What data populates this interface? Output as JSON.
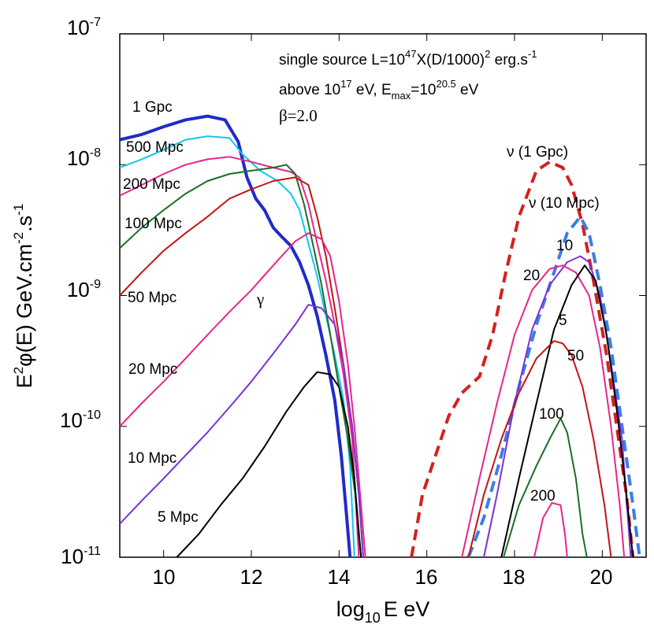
{
  "chart_data": {
    "type": "line",
    "xlabel": {
      "pre": "log",
      "sub": "10",
      "post": "E eV"
    },
    "ylabel": {
      "p1": "E",
      "sup1": "2",
      "p2": "φ(E) GeV.cm",
      "sup2": "-2",
      "p3": ".s",
      "sup3": "-1"
    },
    "xlim": [
      9,
      21
    ],
    "ylim": [
      1e-11,
      1e-07
    ],
    "y_scale": "log",
    "x_ticks": [
      "10",
      "12",
      "14",
      "16",
      "18",
      "20"
    ],
    "y_ticks": [
      {
        "base": "10",
        "exp": "-7"
      },
      {
        "base": "10",
        "exp": "-8"
      },
      {
        "base": "10",
        "exp": "-9"
      },
      {
        "base": "10",
        "exp": "-10"
      },
      {
        "base": "10",
        "exp": "-11"
      }
    ],
    "annotations": {
      "line1": {
        "a": "single source L=10",
        "b": "47",
        "c": "X(D/1000)",
        "d": "2",
        "e": " erg.s",
        "f": "-1"
      },
      "line2": {
        "a": "above 10",
        "b": "17",
        "c": " eV, E",
        "d": "max",
        "e": "=10",
        "f": "20.5",
        "g": " eV"
      },
      "beta": "β=2.0",
      "gamma": "γ"
    },
    "series": [
      {
        "label": "1 Gpc",
        "color": "#1f2bc9",
        "dash": false,
        "width": 4,
        "points": [
          [
            9,
            1.55e-08
          ],
          [
            9.5,
            1.7e-08
          ],
          [
            10,
            1.95e-08
          ],
          [
            10.5,
            2.2e-08
          ],
          [
            11,
            2.35e-08
          ],
          [
            11.4,
            2.2e-08
          ],
          [
            11.7,
            1.5e-08
          ],
          [
            11.9,
            8e-09
          ],
          [
            12.1,
            5.5e-09
          ],
          [
            12.3,
            4.5e-09
          ],
          [
            12.5,
            3.3e-09
          ],
          [
            12.7,
            2.8e-09
          ],
          [
            12.9,
            2.4e-09
          ],
          [
            13.1,
            1.8e-09
          ],
          [
            13.3,
            1.2e-09
          ],
          [
            13.5,
            7e-10
          ],
          [
            13.7,
            3.5e-10
          ],
          [
            13.9,
            1.6e-10
          ],
          [
            14.05,
            6e-11
          ],
          [
            14.15,
            2.5e-11
          ],
          [
            14.25,
            1e-11
          ]
        ]
      },
      {
        "label": "500 Mpc",
        "color": "#12c7ef",
        "dash": false,
        "width": 2,
        "points": [
          [
            9,
            9.5e-09
          ],
          [
            9.5,
            1.1e-08
          ],
          [
            10,
            1.3e-08
          ],
          [
            10.5,
            1.55e-08
          ],
          [
            11,
            1.65e-08
          ],
          [
            11.5,
            1.6e-08
          ],
          [
            11.8,
            1.2e-08
          ],
          [
            12.2,
            9e-09
          ],
          [
            12.6,
            7.5e-09
          ],
          [
            12.9,
            6e-09
          ],
          [
            13.1,
            4.5e-09
          ],
          [
            13.3,
            2.5e-09
          ],
          [
            13.5,
            1.4e-09
          ],
          [
            13.7,
            7e-10
          ],
          [
            13.9,
            3.5e-10
          ],
          [
            14.1,
            1.6e-10
          ],
          [
            14.25,
            5e-11
          ],
          [
            14.35,
            1e-11
          ]
        ]
      },
      {
        "label": "200 Mpc",
        "color": "#e8258a",
        "dash": false,
        "width": 2,
        "points": [
          [
            9,
            5.8e-09
          ],
          [
            9.5,
            7e-09
          ],
          [
            10,
            8.5e-09
          ],
          [
            10.5,
            1e-08
          ],
          [
            11,
            1.1e-08
          ],
          [
            11.5,
            1.15e-08
          ],
          [
            12,
            1.05e-08
          ],
          [
            12.5,
            9.5e-09
          ],
          [
            12.9,
            8.8e-09
          ],
          [
            13.1,
            8e-09
          ],
          [
            13.3,
            5e-09
          ],
          [
            13.5,
            2.5e-09
          ],
          [
            13.7,
            1.3e-09
          ],
          [
            13.9,
            6e-10
          ],
          [
            14.1,
            2.5e-10
          ],
          [
            14.3,
            8e-11
          ],
          [
            14.45,
            1e-11
          ]
        ]
      },
      {
        "label": "100 Mpc",
        "color": "#1b6e24",
        "dash": false,
        "width": 2,
        "points": [
          [
            9,
            2.3e-09
          ],
          [
            9.5,
            3.3e-09
          ],
          [
            10,
            4.5e-09
          ],
          [
            10.5,
            6e-09
          ],
          [
            11,
            7.5e-09
          ],
          [
            11.5,
            8.5e-09
          ],
          [
            12,
            9e-09
          ],
          [
            12.5,
            9.5e-09
          ],
          [
            12.8,
            1e-08
          ],
          [
            13,
            8.5e-09
          ],
          [
            13.2,
            5e-09
          ],
          [
            13.4,
            2.5e-09
          ],
          [
            13.6,
            1.2e-09
          ],
          [
            13.8,
            5e-10
          ],
          [
            14,
            2e-10
          ],
          [
            14.2,
            8e-11
          ],
          [
            14.4,
            2.5e-11
          ],
          [
            14.5,
            1e-11
          ]
        ]
      },
      {
        "label": "50 Mpc",
        "color": "#c41414",
        "dash": false,
        "width": 2,
        "points": [
          [
            9,
            1e-09
          ],
          [
            9.5,
            1.5e-09
          ],
          [
            10,
            2.2e-09
          ],
          [
            10.5,
            3e-09
          ],
          [
            11,
            4e-09
          ],
          [
            11.5,
            5.5e-09
          ],
          [
            12,
            6.5e-09
          ],
          [
            12.5,
            7.5e-09
          ],
          [
            13,
            8e-09
          ],
          [
            13.3,
            7e-09
          ],
          [
            13.5,
            4e-09
          ],
          [
            13.7,
            2e-09
          ],
          [
            13.9,
            8e-10
          ],
          [
            14.1,
            3e-10
          ],
          [
            14.3,
            1e-10
          ],
          [
            14.45,
            3e-11
          ],
          [
            14.55,
            1e-11
          ]
        ]
      },
      {
        "label": "20 Mpc",
        "color": "#e8258a",
        "dash": false,
        "width": 2,
        "points": [
          [
            9,
            1e-10
          ],
          [
            9.5,
            1.5e-10
          ],
          [
            10,
            2.2e-10
          ],
          [
            10.5,
            3.3e-10
          ],
          [
            11,
            5e-10
          ],
          [
            11.5,
            7.5e-10
          ],
          [
            12,
            1.1e-09
          ],
          [
            12.5,
            1.7e-09
          ],
          [
            13,
            2.6e-09
          ],
          [
            13.3,
            3e-09
          ],
          [
            13.6,
            2.7e-09
          ],
          [
            13.8,
            2e-09
          ],
          [
            14,
            9e-10
          ],
          [
            14.2,
            3e-10
          ],
          [
            14.35,
            1e-10
          ],
          [
            14.5,
            2.5e-11
          ],
          [
            14.6,
            1e-11
          ]
        ]
      },
      {
        "label": "10 Mpc",
        "color": "#7b30d9",
        "dash": false,
        "width": 2,
        "points": [
          [
            9,
            1.8e-11
          ],
          [
            9.5,
            2.7e-11
          ],
          [
            10,
            4e-11
          ],
          [
            10.5,
            6e-11
          ],
          [
            11,
            9e-11
          ],
          [
            11.5,
            1.4e-10
          ],
          [
            12,
            2.2e-10
          ],
          [
            12.5,
            3.6e-10
          ],
          [
            13,
            6e-10
          ],
          [
            13.3,
            8.5e-10
          ],
          [
            13.6,
            8e-10
          ],
          [
            13.9,
            6e-10
          ],
          [
            14.1,
            3e-10
          ],
          [
            14.3,
            1e-10
          ],
          [
            14.45,
            3e-11
          ],
          [
            14.55,
            1e-11
          ]
        ]
      },
      {
        "label": "5 Mpc",
        "color": "#000000",
        "dash": false,
        "width": 2,
        "points": [
          [
            10.3,
            1e-11
          ],
          [
            10.8,
            1.5e-11
          ],
          [
            11.3,
            2.5e-11
          ],
          [
            11.8,
            4e-11
          ],
          [
            12.3,
            7e-11
          ],
          [
            12.8,
            1.3e-10
          ],
          [
            13.2,
            2e-10
          ],
          [
            13.5,
            2.6e-10
          ],
          [
            13.8,
            2.5e-10
          ],
          [
            14,
            2e-10
          ],
          [
            14.2,
            1e-10
          ],
          [
            14.35,
            4e-11
          ],
          [
            14.45,
            1.5e-11
          ],
          [
            14.5,
            1e-11
          ]
        ]
      },
      {
        "label": "ν (1 Gpc)",
        "color": "#d42020",
        "dash": true,
        "width": 4,
        "points": [
          [
            15.65,
            1e-11
          ],
          [
            15.9,
            3e-11
          ],
          [
            16.2,
            6e-11
          ],
          [
            16.5,
            1.2e-10
          ],
          [
            16.8,
            1.8e-10
          ],
          [
            17.2,
            2.4e-10
          ],
          [
            17.5,
            5e-10
          ],
          [
            17.8,
            1.5e-09
          ],
          [
            18.1,
            4e-09
          ],
          [
            18.5,
            9e-09
          ],
          [
            18.8,
            1.05e-08
          ],
          [
            19.1,
            9.5e-09
          ],
          [
            19.3,
            7e-09
          ],
          [
            19.55,
            3.5e-09
          ],
          [
            19.8,
            1.3e-09
          ],
          [
            20.1,
            3.5e-10
          ],
          [
            20.35,
            9e-11
          ],
          [
            20.55,
            3e-11
          ],
          [
            20.7,
            1e-11
          ]
        ]
      },
      {
        "label": "ν (10 Mpc)",
        "color": "#3a7ee6",
        "dash": true,
        "width": 4,
        "points": [
          [
            16.95,
            1e-11
          ],
          [
            17.3,
            2e-11
          ],
          [
            17.7,
            6e-11
          ],
          [
            18.1,
            2e-10
          ],
          [
            18.5,
            6e-10
          ],
          [
            18.9,
            1.5e-09
          ],
          [
            19.2,
            3e-09
          ],
          [
            19.5,
            4e-09
          ],
          [
            19.7,
            3e-09
          ],
          [
            19.95,
            1.2e-09
          ],
          [
            20.2,
            4e-10
          ],
          [
            20.45,
            1e-10
          ],
          [
            20.7,
            2.5e-11
          ],
          [
            20.85,
            1e-11
          ]
        ]
      },
      {
        "label": "10",
        "color": "#7b30d9",
        "dash": false,
        "width": 2,
        "points": [
          [
            17.3,
            1e-11
          ],
          [
            17.6,
            3e-11
          ],
          [
            18,
            1.5e-10
          ],
          [
            18.4,
            5.5e-10
          ],
          [
            18.8,
            1.2e-09
          ],
          [
            19.2,
            1.8e-09
          ],
          [
            19.5,
            2e-09
          ],
          [
            19.7,
            1.8e-09
          ],
          [
            19.95,
            1e-09
          ],
          [
            20.2,
            3e-10
          ],
          [
            20.45,
            8e-11
          ],
          [
            20.65,
            1e-11
          ]
        ]
      },
      {
        "label": "20",
        "color": "#e8258a",
        "dash": false,
        "width": 2,
        "points": [
          [
            16.8,
            1e-11
          ],
          [
            17.2,
            4e-11
          ],
          [
            17.6,
            1.5e-10
          ],
          [
            18,
            5e-10
          ],
          [
            18.4,
            1.1e-09
          ],
          [
            18.8,
            1.6e-09
          ],
          [
            19.1,
            1.7e-09
          ],
          [
            19.4,
            1.5e-09
          ],
          [
            19.7,
            1e-09
          ],
          [
            19.95,
            4e-10
          ],
          [
            20.2,
            1e-10
          ],
          [
            20.4,
            2.5e-11
          ],
          [
            20.5,
            1e-11
          ]
        ]
      },
      {
        "label": "5",
        "color": "#000000",
        "dash": false,
        "width": 2,
        "points": [
          [
            17.7,
            1e-11
          ],
          [
            18.1,
            4e-11
          ],
          [
            18.5,
            1.5e-10
          ],
          [
            18.9,
            5.5e-10
          ],
          [
            19.3,
            1.2e-09
          ],
          [
            19.6,
            1.7e-09
          ],
          [
            19.85,
            1.3e-09
          ],
          [
            20.1,
            5e-10
          ],
          [
            20.35,
            1.2e-10
          ],
          [
            20.55,
            3e-11
          ],
          [
            20.7,
            1e-11
          ]
        ]
      },
      {
        "label": "50",
        "color": "#c41414",
        "dash": false,
        "width": 2,
        "points": [
          [
            16.95,
            1e-11
          ],
          [
            17.3,
            3e-11
          ],
          [
            17.7,
            8e-11
          ],
          [
            18.1,
            1.8e-10
          ],
          [
            18.5,
            3.3e-10
          ],
          [
            18.9,
            4.5e-10
          ],
          [
            19.1,
            4.3e-10
          ],
          [
            19.3,
            3.5e-10
          ],
          [
            19.55,
            2e-10
          ],
          [
            19.8,
            8e-11
          ],
          [
            20.05,
            2.5e-11
          ],
          [
            20.2,
            1e-11
          ]
        ]
      },
      {
        "label": "100",
        "color": "#1b6e24",
        "dash": false,
        "width": 2,
        "points": [
          [
            17.75,
            1e-11
          ],
          [
            18.1,
            2.5e-11
          ],
          [
            18.5,
            5e-11
          ],
          [
            18.8,
            8e-11
          ],
          [
            19.05,
            1.15e-10
          ],
          [
            19.2,
            9e-11
          ],
          [
            19.4,
            4e-11
          ],
          [
            19.55,
            1.5e-11
          ],
          [
            19.65,
            1e-11
          ]
        ]
      },
      {
        "label": "200",
        "color": "#e8258a",
        "dash": false,
        "width": 2,
        "points": [
          [
            18.45,
            1e-11
          ],
          [
            18.65,
            2e-11
          ],
          [
            18.85,
            2.6e-11
          ],
          [
            19.05,
            2.5e-11
          ],
          [
            19.15,
            1.5e-11
          ],
          [
            19.2,
            1e-11
          ]
        ]
      }
    ]
  }
}
